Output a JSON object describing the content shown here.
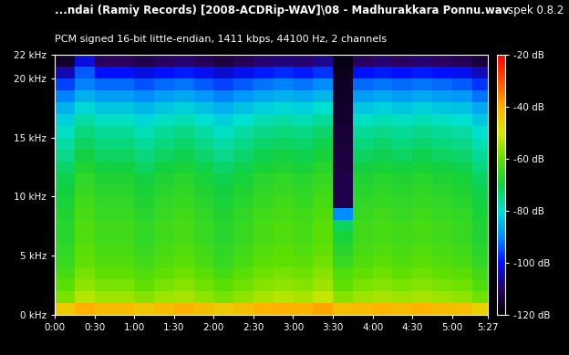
{
  "chart_data": {
    "type": "heatmap",
    "title": "...ndai (Ramiy Records) [2008-ACDRip-WAV]\\08 - Madhurakkara Ponnu.wav",
    "subtitle": "PCM signed 16-bit little-endian, 1411 kbps, 44100 Hz, 2 channels",
    "annotation": "spek 0.8.2",
    "x_edges": [
      0,
      15,
      30,
      45,
      60,
      75,
      90,
      105,
      120,
      135,
      150,
      165,
      180,
      195,
      210,
      225,
      240,
      255,
      270,
      285,
      300,
      315,
      327
    ],
    "y_edges": [
      0,
      1,
      2,
      3,
      4,
      5,
      6,
      7,
      8,
      9,
      10,
      11,
      12,
      13,
      14,
      15,
      16,
      17,
      18,
      19,
      20,
      21,
      22
    ],
    "cells": [
      [
        -45,
        -40,
        -42,
        -42,
        -44,
        -42,
        -41,
        -43,
        -45,
        -43,
        -41,
        -40,
        -41,
        -39,
        -43,
        -42,
        -41,
        -42,
        -41,
        -42,
        -43,
        -46
      ],
      [
        -58,
        -53,
        -55,
        -55,
        -57,
        -55,
        -54,
        -56,
        -58,
        -56,
        -54,
        -53,
        -54,
        -52,
        -57,
        -55,
        -54,
        -55,
        -54,
        -55,
        -56,
        -59
      ],
      [
        -61,
        -56,
        -58,
        -58,
        -60,
        -58,
        -57,
        -59,
        -61,
        -59,
        -57,
        -56,
        -57,
        -55,
        -60,
        -58,
        -57,
        -58,
        -57,
        -58,
        -59,
        -62
      ],
      [
        -63,
        -58,
        -60,
        -60,
        -62,
        -60,
        -59,
        -61,
        -63,
        -61,
        -59,
        -58,
        -59,
        -57,
        -62,
        -60,
        -59,
        -60,
        -59,
        -60,
        -61,
        -64
      ],
      [
        -65,
        -60,
        -62,
        -62,
        -64,
        -62,
        -61,
        -63,
        -65,
        -63,
        -61,
        -60,
        -61,
        -59,
        -65,
        -62,
        -61,
        -62,
        -61,
        -62,
        -63,
        -66
      ],
      [
        -66,
        -61,
        -63,
        -63,
        -65,
        -63,
        -62,
        -64,
        -66,
        -64,
        -62,
        -61,
        -62,
        -60,
        -67,
        -63,
        -62,
        -63,
        -62,
        -63,
        -64,
        -67
      ],
      [
        -67,
        -62,
        -64,
        -64,
        -66,
        -64,
        -63,
        -65,
        -67,
        -65,
        -63,
        -62,
        -63,
        -61,
        -69,
        -64,
        -63,
        -64,
        -63,
        -64,
        -65,
        -68
      ],
      [
        -67,
        -62,
        -64,
        -64,
        -66,
        -64,
        -63,
        -65,
        -67,
        -65,
        -63,
        -62,
        -63,
        -61,
        -72,
        -64,
        -63,
        -64,
        -63,
        -64,
        -65,
        -68
      ],
      [
        -68,
        -63,
        -65,
        -65,
        -67,
        -65,
        -64,
        -66,
        -68,
        -66,
        -64,
        -63,
        -64,
        -62,
        -90,
        -65,
        -64,
        -65,
        -64,
        -65,
        -66,
        -69
      ],
      [
        -69,
        -64,
        -66,
        -66,
        -68,
        -66,
        -65,
        -67,
        -69,
        -67,
        -65,
        -64,
        -65,
        -63,
        -112,
        -66,
        -65,
        -66,
        -65,
        -66,
        -67,
        -70
      ],
      [
        -70,
        -65,
        -67,
        -67,
        -69,
        -67,
        -66,
        -68,
        -70,
        -68,
        -66,
        -65,
        -66,
        -64,
        -112,
        -67,
        -66,
        -67,
        -66,
        -67,
        -68,
        -71
      ],
      [
        -71,
        -66,
        -68,
        -68,
        -70,
        -68,
        -67,
        -69,
        -71,
        -69,
        -67,
        -66,
        -67,
        -65,
        -112,
        -68,
        -67,
        -68,
        -67,
        -68,
        -69,
        -72
      ],
      [
        -73,
        -68,
        -70,
        -70,
        -72,
        -70,
        -69,
        -71,
        -73,
        -71,
        -69,
        -68,
        -69,
        -67,
        -113,
        -70,
        -69,
        -70,
        -69,
        -70,
        -71,
        -74
      ],
      [
        -75,
        -70,
        -72,
        -72,
        -74,
        -72,
        -71,
        -73,
        -75,
        -73,
        -71,
        -70,
        -71,
        -69,
        -113,
        -72,
        -71,
        -72,
        -71,
        -72,
        -73,
        -76
      ],
      [
        -77,
        -72,
        -74,
        -74,
        -76,
        -74,
        -73,
        -75,
        -77,
        -75,
        -73,
        -72,
        -73,
        -71,
        -114,
        -74,
        -73,
        -74,
        -73,
        -74,
        -75,
        -78
      ],
      [
        -79,
        -74,
        -76,
        -76,
        -78,
        -76,
        -75,
        -77,
        -79,
        -77,
        -75,
        -74,
        -75,
        -73,
        -114,
        -76,
        -75,
        -76,
        -75,
        -76,
        -77,
        -80
      ],
      [
        -82,
        -77,
        -79,
        -79,
        -81,
        -79,
        -78,
        -80,
        -82,
        -80,
        -78,
        -77,
        -78,
        -76,
        -115,
        -79,
        -78,
        -79,
        -78,
        -79,
        -80,
        -83
      ],
      [
        -86,
        -81,
        -83,
        -83,
        -85,
        -83,
        -82,
        -84,
        -86,
        -84,
        -82,
        -81,
        -82,
        -80,
        -115,
        -83,
        -82,
        -83,
        -82,
        -83,
        -84,
        -87
      ],
      [
        -91,
        -86,
        -88,
        -88,
        -90,
        -88,
        -87,
        -89,
        -91,
        -89,
        -87,
        -86,
        -87,
        -85,
        -116,
        -88,
        -87,
        -88,
        -87,
        -88,
        -89,
        -92
      ],
      [
        -96,
        -91,
        -93,
        -93,
        -95,
        -93,
        -92,
        -94,
        -96,
        -94,
        -92,
        -91,
        -92,
        -90,
        -116,
        -93,
        -92,
        -93,
        -92,
        -93,
        -94,
        -97
      ],
      [
        -105,
        -94,
        -100,
        -100,
        -102,
        -100,
        -99,
        -101,
        -103,
        -101,
        -99,
        -98,
        -99,
        -97,
        -117,
        -100,
        -99,
        -100,
        -99,
        -100,
        -101,
        -104
      ],
      [
        -115,
        -102,
        -110,
        -110,
        -112,
        -110,
        -109,
        -111,
        -113,
        -111,
        -109,
        -108,
        -109,
        -107,
        -118,
        -110,
        -109,
        -110,
        -109,
        -110,
        -111,
        -114
      ]
    ],
    "xlim": [
      0,
      327
    ],
    "ylim": [
      0,
      22
    ],
    "xticks": [
      {
        "value": 0,
        "label": "0:00"
      },
      {
        "value": 30,
        "label": "0:30"
      },
      {
        "value": 60,
        "label": "1:00"
      },
      {
        "value": 90,
        "label": "1:30"
      },
      {
        "value": 120,
        "label": "2:00"
      },
      {
        "value": 150,
        "label": "2:30"
      },
      {
        "value": 180,
        "label": "3:00"
      },
      {
        "value": 210,
        "label": "3:30"
      },
      {
        "value": 240,
        "label": "4:00"
      },
      {
        "value": 270,
        "label": "4:30"
      },
      {
        "value": 300,
        "label": "5:00"
      },
      {
        "value": 327,
        "label": "5:27"
      }
    ],
    "yticks": [
      {
        "value": 0,
        "label": "0 kHz"
      },
      {
        "value": 5,
        "label": "5 kHz"
      },
      {
        "value": 10,
        "label": "10 kHz"
      },
      {
        "value": 15,
        "label": "15 kHz"
      },
      {
        "value": 20,
        "label": "20 kHz"
      },
      {
        "value": 22,
        "label": "22 kHz"
      }
    ],
    "colorbar": {
      "range": [
        -120,
        -20
      ],
      "ticks": [
        {
          "value": -20,
          "label": "-20 dB"
        },
        {
          "value": -40,
          "label": "-40 dB"
        },
        {
          "value": -60,
          "label": "-60 dB"
        },
        {
          "value": -80,
          "label": "-80 dB"
        },
        {
          "value": -100,
          "label": "-100 dB"
        },
        {
          "value": -120,
          "label": "-120 dB"
        }
      ]
    }
  }
}
